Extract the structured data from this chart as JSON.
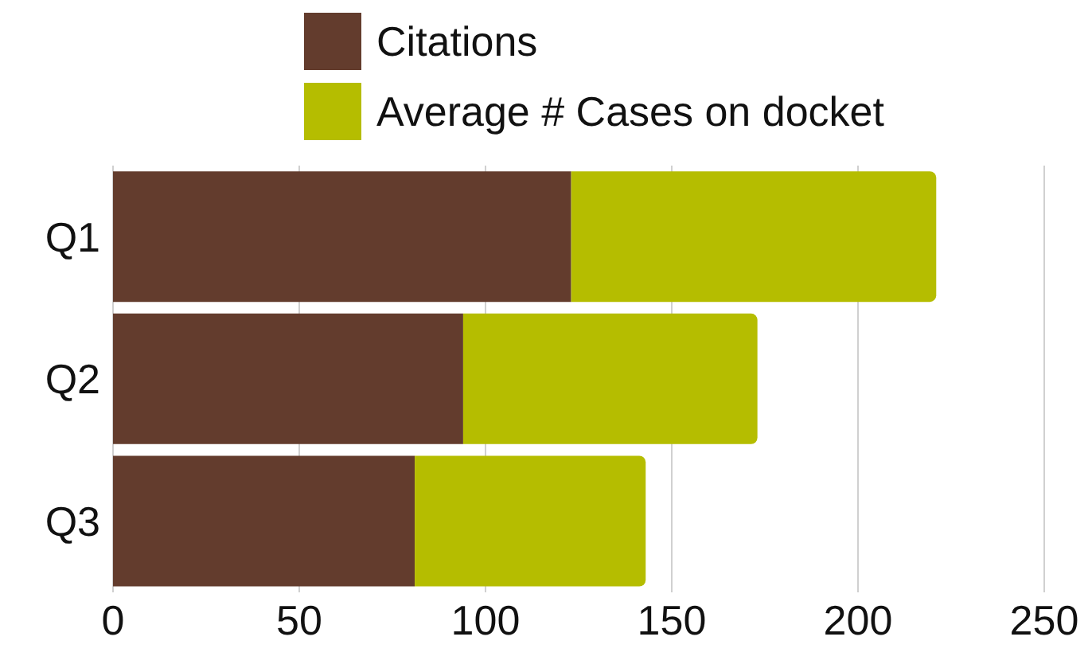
{
  "chart_data": {
    "type": "bar",
    "orientation": "horizontal",
    "stacked": true,
    "categories": [
      "Q1",
      "Q2",
      "Q3"
    ],
    "series": [
      {
        "name": "Citations",
        "color": "#633c2d",
        "values": [
          123,
          94,
          81
        ]
      },
      {
        "name": "Average # Cases on docket",
        "color": "#b5bd00",
        "values": [
          98,
          79,
          62
        ]
      }
    ],
    "xlim": [
      0,
      250
    ],
    "xticks": [
      0,
      50,
      100,
      150,
      200,
      250
    ],
    "grid": "x",
    "legend": "top"
  }
}
